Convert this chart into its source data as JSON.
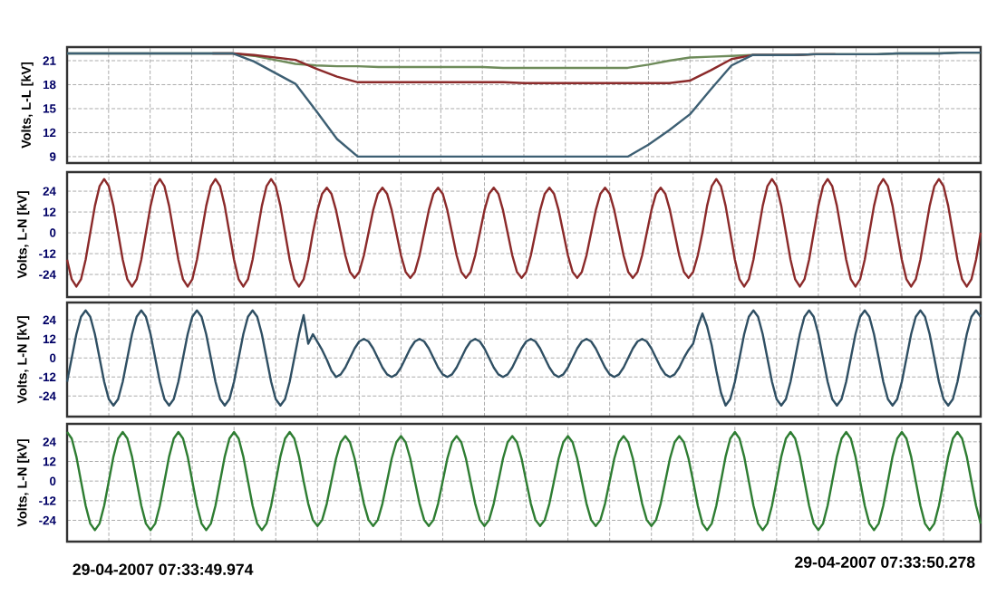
{
  "chart_data": [
    {
      "type": "line",
      "ylabel": "Volts, L-L [kV]",
      "ylim": [
        8.2,
        22.7
      ],
      "yticks": [
        9,
        12,
        15,
        18,
        21
      ],
      "grid": true,
      "categories": [
        null,
        null,
        null,
        null,
        null,
        null,
        null,
        null,
        null,
        null,
        null,
        null,
        null,
        null,
        null,
        null,
        null,
        null,
        null,
        null,
        null,
        null,
        null,
        null,
        null,
        null,
        null,
        null,
        null,
        null,
        null,
        null,
        null,
        null,
        null,
        null,
        null,
        null,
        null,
        null,
        null,
        null,
        null,
        null,
        null
      ],
      "series": [
        {
          "color": "#6e8b5a",
          "values": [
            21.9,
            21.9,
            21.9,
            21.9,
            21.9,
            21.9,
            21.9,
            21.9,
            21.9,
            21.6,
            21.1,
            20.6,
            20.4,
            20.3,
            20.3,
            20.2,
            20.2,
            20.2,
            20.2,
            20.2,
            20.2,
            20.1,
            20.1,
            20.1,
            20.1,
            20.1,
            20.1,
            20.1,
            20.5,
            21.0,
            21.4,
            21.5,
            21.6,
            21.7,
            21.7,
            21.7,
            21.8,
            21.8,
            21.8,
            21.8,
            21.9,
            21.9,
            21.9,
            22.0,
            22.0
          ]
        },
        {
          "color": "#8b2a2a",
          "values": [
            null,
            null,
            null,
            null,
            null,
            null,
            null,
            21.9,
            21.9,
            21.7,
            21.4,
            21.1,
            20.0,
            19.0,
            18.3,
            18.3,
            18.3,
            18.3,
            18.3,
            18.3,
            18.3,
            18.3,
            18.2,
            18.2,
            18.2,
            18.2,
            18.2,
            18.2,
            18.2,
            18.2,
            18.5,
            19.8,
            21.2,
            21.7,
            21.7,
            21.7,
            21.8,
            21.8,
            null,
            null,
            null,
            null,
            null,
            null,
            null
          ]
        },
        {
          "color": "#3d5f73",
          "values": [
            21.9,
            21.9,
            21.9,
            21.9,
            21.9,
            21.9,
            21.9,
            21.9,
            21.9,
            20.9,
            19.5,
            18.1,
            14.7,
            11.2,
            9.0,
            9.0,
            9.0,
            9.0,
            9.0,
            9.0,
            9.0,
            9.0,
            9.0,
            9.0,
            9.0,
            9.0,
            9.0,
            9.0,
            10.5,
            12.3,
            14.3,
            17.4,
            20.4,
            21.7,
            21.7,
            21.7,
            21.8,
            21.8,
            21.8,
            21.8,
            21.9,
            21.9,
            21.9,
            22.0,
            22.0
          ]
        }
      ]
    },
    {
      "type": "line",
      "ylabel": "Volts, L-N [kV]",
      "ylim": [
        -37,
        35
      ],
      "yticks": [
        -24,
        -12,
        0,
        12,
        24
      ],
      "grid": true,
      "categories": [
        null,
        null,
        null,
        null,
        null,
        null,
        null,
        null,
        null,
        null,
        null,
        null,
        null,
        null,
        null,
        null,
        null,
        null,
        null,
        null,
        null,
        null,
        null,
        null,
        null,
        null,
        null,
        null,
        null,
        null,
        null,
        null,
        null,
        null,
        null,
        null,
        null,
        null,
        null,
        null,
        null,
        null,
        null,
        null,
        null,
        null,
        null,
        null,
        null,
        null,
        null,
        null,
        null,
        null,
        null,
        null,
        null,
        null,
        null,
        null,
        null,
        null,
        null,
        null,
        null,
        null,
        null,
        null,
        null,
        null,
        null,
        null,
        null,
        null,
        null,
        null,
        null,
        null,
        null,
        null,
        null,
        null,
        null,
        null,
        null,
        null,
        null,
        null,
        null,
        null,
        null,
        null,
        null,
        null,
        null,
        null,
        null,
        null,
        null,
        null,
        null,
        null,
        null,
        null,
        null,
        null,
        null,
        null,
        null,
        null,
        null,
        null,
        null,
        null,
        null,
        null,
        null,
        null,
        null,
        null,
        null,
        null,
        null,
        null,
        null,
        null,
        null,
        null,
        null,
        null,
        null,
        null,
        null,
        null,
        null,
        null,
        null,
        null,
        null,
        null,
        null,
        null,
        null,
        null,
        null,
        null,
        null,
        null,
        null,
        null,
        null,
        null,
        null,
        null,
        null,
        null,
        null,
        null,
        null,
        null,
        null,
        null,
        null,
        null,
        null,
        null,
        null,
        null,
        null,
        null,
        null,
        null,
        null,
        null,
        null,
        null,
        null,
        null,
        null,
        null,
        null,
        null,
        null,
        null,
        null,
        null,
        null,
        null,
        null,
        null,
        null,
        null,
        null,
        null,
        null,
        null,
        null,
        null
      ],
      "series": [
        {
          "color": "#8b2a2a",
          "values": [
            -15.5,
            -26.8,
            -31,
            -26.8,
            -15.5,
            0,
            15.5,
            26.8,
            31,
            26.8,
            15.5,
            0,
            -15.5,
            -26.8,
            -31,
            -26.8,
            -15.5,
            0,
            15.5,
            26.8,
            31,
            26.8,
            15.5,
            0,
            -15.5,
            -26.8,
            -31,
            -26.8,
            -15.5,
            0,
            15.5,
            26.8,
            31,
            26.8,
            15.5,
            0,
            -15.5,
            -26.8,
            -31,
            -26.8,
            -15.5,
            0,
            15.5,
            26.8,
            31,
            26.8,
            15.5,
            0,
            -15.5,
            -26.8,
            -31,
            -26.8,
            -15.5,
            0,
            13,
            22.5,
            26,
            22.5,
            13,
            0,
            -13,
            -22.5,
            -26,
            -22.5,
            -13,
            0,
            13,
            22.5,
            26,
            22.5,
            13,
            0,
            -13,
            -22.5,
            -26,
            -22.5,
            -13,
            0,
            13,
            22.5,
            26,
            22.5,
            13,
            0,
            -13,
            -22.5,
            -26,
            -22.5,
            -13,
            0,
            13,
            22.5,
            26,
            22.5,
            13,
            0,
            -13,
            -22.5,
            -26,
            -22.5,
            -13,
            0,
            13,
            22.5,
            26,
            22.5,
            13,
            0,
            -13,
            -22.5,
            -26,
            -22.5,
            -13,
            0,
            13,
            22.5,
            26,
            22.5,
            13,
            0,
            -13,
            -22.5,
            -26,
            -22.5,
            -13,
            0,
            13,
            22.5,
            26,
            22.5,
            13,
            0,
            -13,
            -22.5,
            -26,
            -22.5,
            -13,
            0,
            15.5,
            26.8,
            31,
            26.8,
            15.5,
            0,
            -15.5,
            -26.8,
            -31,
            -26.8,
            -15.5,
            0,
            15.5,
            26.8,
            31,
            26.8,
            15.5,
            0,
            -15.5,
            -26.8,
            -31,
            -26.8,
            -15.5,
            0,
            15.5,
            26.8,
            31,
            26.8,
            15.5,
            0,
            -15.5,
            -26.8,
            -31,
            -26.8,
            -15.5,
            0,
            15.5,
            26.8,
            31,
            26.8,
            15.5,
            0,
            -15.5,
            -26.8,
            -31,
            -26.8,
            -15.5,
            0,
            15.5,
            26.8,
            31,
            26.8,
            15.5,
            0,
            -15.5,
            -26.8,
            -31,
            -26.8,
            -15.5,
            0
          ]
        }
      ]
    },
    {
      "type": "line",
      "ylabel": "Volts, L-N [kV]",
      "ylim": [
        -37,
        35
      ],
      "yticks": [
        -24,
        -12,
        0,
        12,
        24
      ],
      "grid": true,
      "categories": [
        null,
        null,
        null,
        null,
        null,
        null,
        null,
        null,
        null,
        null,
        null,
        null,
        null,
        null,
        null,
        null,
        null,
        null,
        null,
        null,
        null,
        null,
        null,
        null,
        null,
        null,
        null,
        null,
        null,
        null,
        null,
        null,
        null,
        null,
        null,
        null,
        null,
        null,
        null,
        null,
        null,
        null,
        null,
        null,
        null,
        null,
        null,
        null,
        null,
        null,
        null,
        null,
        null,
        null,
        null,
        null,
        null,
        null,
        null,
        null,
        null,
        null,
        null,
        null,
        null,
        null,
        null,
        null,
        null,
        null,
        null,
        null,
        null,
        null,
        null,
        null,
        null,
        null,
        null,
        null,
        null,
        null,
        null,
        null,
        null,
        null,
        null,
        null,
        null,
        null,
        null,
        null,
        null,
        null,
        null,
        null,
        null,
        null,
        null,
        null,
        null,
        null,
        null,
        null,
        null,
        null,
        null,
        null,
        null,
        null,
        null,
        null,
        null,
        null,
        null,
        null,
        null,
        null,
        null,
        null,
        null,
        null,
        null,
        null,
        null,
        null,
        null,
        null,
        null,
        null,
        null,
        null,
        null,
        null,
        null,
        null,
        null,
        null,
        null,
        null,
        null,
        null,
        null,
        null,
        null,
        null,
        null,
        null,
        null,
        null,
        null,
        null,
        null,
        null,
        null,
        null,
        null,
        null,
        null,
        null,
        null,
        null,
        null,
        null,
        null,
        null,
        null,
        null,
        null,
        null,
        null,
        null,
        null,
        null,
        null,
        null,
        null,
        null,
        null,
        null,
        null,
        null,
        null,
        null,
        null,
        null,
        null,
        null,
        null,
        null,
        null,
        null,
        null,
        null,
        null,
        null,
        null,
        null
      ],
      "series": [
        {
          "color": "#2f4f63",
          "values": [
            -15,
            0,
            15,
            26,
            30,
            26,
            15,
            0,
            -15,
            -26,
            -30,
            -26,
            -15,
            0,
            15,
            26,
            30,
            26,
            15,
            0,
            -15,
            -26,
            -30,
            -26,
            -15,
            0,
            15,
            26,
            30,
            26,
            15,
            0,
            -15,
            -26,
            -30,
            -26,
            -15,
            0,
            15,
            26,
            30,
            26,
            15,
            0,
            -15,
            -26,
            -30,
            -26,
            -15,
            0,
            15,
            27,
            9,
            15,
            10,
            5,
            -1,
            -8,
            -12,
            -10.4,
            -6,
            0,
            6,
            10.4,
            12,
            10.4,
            6,
            0,
            -6,
            -10.4,
            -12,
            -10.4,
            -6,
            0,
            6,
            10.4,
            12,
            10.4,
            6,
            0,
            -6,
            -10.4,
            -12,
            -10.4,
            -6,
            0,
            6,
            10.4,
            12,
            10.4,
            6,
            0,
            -6,
            -10.4,
            -12,
            -10.4,
            -6,
            0,
            6,
            10.4,
            12,
            10.4,
            6,
            0,
            -6,
            -10.4,
            -12,
            -10.4,
            -6,
            0,
            6,
            10.4,
            12,
            10.4,
            6,
            0,
            -6,
            -10.4,
            -12,
            -10.4,
            -6,
            0,
            6,
            10.4,
            12,
            10.4,
            6,
            0,
            -6,
            -10.4,
            -12,
            -10.4,
            -6,
            0,
            5,
            9,
            20,
            28,
            20,
            8,
            -8,
            -22,
            -30,
            -26,
            -15,
            0,
            15,
            26,
            30,
            26,
            15,
            0,
            -15,
            -26,
            -30,
            -26,
            -15,
            0,
            15,
            26,
            30,
            26,
            15,
            0,
            -15,
            -26,
            -30,
            -26,
            -15,
            0,
            15,
            26,
            30,
            26,
            15,
            0,
            -15,
            -26,
            -30,
            -26,
            -15,
            0,
            15,
            26,
            30,
            26,
            15,
            0,
            -15,
            -26,
            -30,
            -26,
            -15,
            0,
            15,
            26,
            30,
            26
          ]
        }
      ]
    },
    {
      "type": "line",
      "ylabel": "Volts, L-N [kV]",
      "ylim": [
        -37,
        35
      ],
      "yticks": [
        -24,
        -12,
        0,
        12,
        24
      ],
      "grid": true,
      "annotations": [
        "29-04-2007 07:33:49.974",
        "29-04-2007 07:33:50.278"
      ],
      "categories": [
        null,
        null,
        null,
        null,
        null,
        null,
        null,
        null,
        null,
        null,
        null,
        null,
        null,
        null,
        null,
        null,
        null,
        null,
        null,
        null,
        null,
        null,
        null,
        null,
        null,
        null,
        null,
        null,
        null,
        null,
        null,
        null,
        null,
        null,
        null,
        null,
        null,
        null,
        null,
        null,
        null,
        null,
        null,
        null,
        null,
        null,
        null,
        null,
        null,
        null,
        null,
        null,
        null,
        null,
        null,
        null,
        null,
        null,
        null,
        null,
        null,
        null,
        null,
        null,
        null,
        null,
        null,
        null,
        null,
        null,
        null,
        null,
        null,
        null,
        null,
        null,
        null,
        null,
        null,
        null,
        null,
        null,
        null,
        null,
        null,
        null,
        null,
        null,
        null,
        null,
        null,
        null,
        null,
        null,
        null,
        null,
        null,
        null,
        null,
        null,
        null,
        null,
        null,
        null,
        null,
        null,
        null,
        null,
        null,
        null,
        null,
        null,
        null,
        null,
        null,
        null,
        null,
        null,
        null,
        null,
        null,
        null,
        null,
        null,
        null,
        null,
        null,
        null,
        null,
        null,
        null,
        null,
        null,
        null,
        null,
        null,
        null,
        null,
        null,
        null,
        null,
        null,
        null,
        null,
        null,
        null,
        null,
        null,
        null,
        null,
        null,
        null,
        null,
        null,
        null,
        null,
        null,
        null,
        null,
        null,
        null,
        null,
        null,
        null,
        null,
        null,
        null,
        null,
        null,
        null,
        null,
        null,
        null,
        null,
        null,
        null,
        null,
        null,
        null,
        null,
        null,
        null,
        null,
        null,
        null,
        null,
        null,
        null,
        null,
        null,
        null,
        null,
        null,
        null,
        null,
        null,
        null,
        null
      ],
      "series": [
        {
          "color": "#2e7d32",
          "values": [
            30,
            26,
            15,
            0,
            -15,
            -26,
            -30,
            -26,
            -15,
            0,
            15,
            26,
            30,
            26,
            15,
            0,
            -15,
            -26,
            -30,
            -26,
            -15,
            0,
            15,
            26,
            30,
            26,
            15,
            0,
            -15,
            -26,
            -30,
            -26,
            -15,
            0,
            15,
            26,
            30,
            26,
            15,
            0,
            -15,
            -26,
            -30,
            -26,
            -15,
            0,
            15,
            26,
            30,
            26,
            15,
            0,
            -13.8,
            -23.8,
            -27.5,
            -23.8,
            -13.8,
            0,
            13.8,
            23.8,
            27.5,
            23.8,
            13.8,
            0,
            -13.8,
            -23.8,
            -27.5,
            -23.8,
            -13.8,
            0,
            13.8,
            23.8,
            27.5,
            23.8,
            13.8,
            0,
            -13.8,
            -23.8,
            -27.5,
            -23.8,
            -13.8,
            0,
            13.8,
            23.8,
            27.5,
            23.8,
            13.8,
            0,
            -13.8,
            -23.8,
            -27.5,
            -23.8,
            -13.8,
            0,
            13.8,
            23.8,
            27.5,
            23.8,
            13.8,
            0,
            -13.8,
            -23.8,
            -27.5,
            -23.8,
            -13.8,
            0,
            13.8,
            23.8,
            27.5,
            23.8,
            13.8,
            0,
            -13.8,
            -23.8,
            -27.5,
            -23.8,
            -13.8,
            0,
            13.8,
            23.8,
            27.5,
            23.8,
            13.8,
            0,
            -13.8,
            -23.8,
            -27.5,
            -23.8,
            -13.8,
            0,
            13.8,
            23.8,
            27.5,
            23.8,
            13.8,
            0,
            -15,
            -26,
            -30,
            -26,
            -15,
            0,
            15,
            26,
            30,
            26,
            15,
            0,
            -15,
            -26,
            -30,
            -26,
            -15,
            0,
            15,
            26,
            30,
            26,
            15,
            0,
            -15,
            -26,
            -30,
            -26,
            -15,
            0,
            15,
            26,
            30,
            26,
            15,
            0,
            -15,
            -26,
            -30,
            -26,
            -15,
            0,
            15,
            26,
            30,
            26,
            15,
            0,
            -15,
            -26,
            -30,
            -26,
            -15,
            0,
            15,
            26,
            30,
            26,
            15,
            0,
            -15,
            -26
          ]
        }
      ]
    }
  ]
}
